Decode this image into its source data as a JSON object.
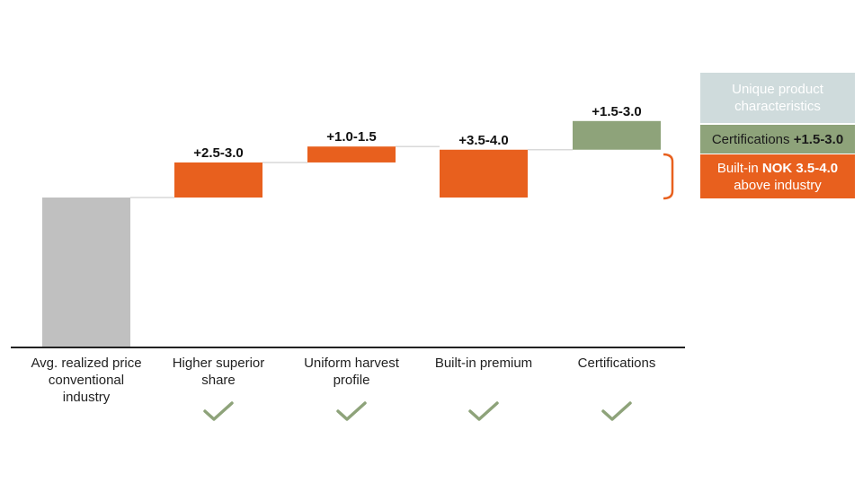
{
  "chart_data": {
    "type": "bar",
    "subtype": "waterfall",
    "categories": [
      "Avg. realized price conventional industry",
      "Higher superior share",
      "Uniform harvest profile",
      "Built-in premium",
      "Certifications"
    ],
    "category_lines": [
      [
        "Avg. realized price",
        "conventional",
        "industry"
      ],
      [
        "Higher superior",
        "share"
      ],
      [
        "Uniform harvest",
        "profile"
      ],
      [
        "Built-in premium"
      ],
      [
        "Certifications"
      ]
    ],
    "values": [
      null,
      2.75,
      1.25,
      3.75,
      2.25
    ],
    "data_labels": [
      "",
      "+2.5-3.0",
      "+1.0-1.5",
      "+3.5-4.0",
      "+1.5-3.0"
    ],
    "checkmarks": [
      false,
      true,
      true,
      true,
      true
    ],
    "colors": {
      "base": "#c0c0c0",
      "increase": "#e8601e",
      "certification": "#8ea37a",
      "connector": "#d9d9d9",
      "axis": "#222222",
      "check": "#8ea37a"
    },
    "grid": false
  },
  "legend": {
    "unique": "Unique product characteristics",
    "cert_text": "Certifications ",
    "cert_value": "+1.5-3.0",
    "builtin_prefix": "Built-in ",
    "builtin_value": "NOK 3.5-4.0",
    "builtin_suffix": "above industry",
    "colors": {
      "unique_bg": "#cfdbdc",
      "cert_bg": "#8ea37a",
      "builtin_bg": "#e8601e"
    }
  }
}
